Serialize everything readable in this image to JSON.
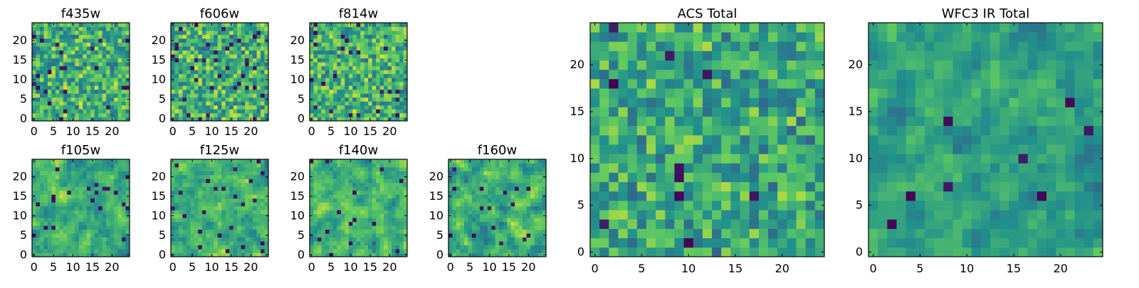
{
  "chart_data": [
    {
      "type": "heatmap",
      "id": "f435w",
      "title": "f435w",
      "grid": [
        25,
        25
      ],
      "xlim": [
        0,
        24
      ],
      "ylim": [
        0,
        24
      ],
      "xticks": [
        0,
        5,
        10,
        15,
        20
      ],
      "yticks": [
        0,
        5,
        10,
        15,
        20
      ],
      "seed": 11,
      "smooth": 0,
      "noise": 0.52,
      "dark": 0.035
    },
    {
      "type": "heatmap",
      "id": "f606w",
      "title": "f606w",
      "grid": [
        25,
        25
      ],
      "xlim": [
        0,
        24
      ],
      "ylim": [
        0,
        24
      ],
      "xticks": [
        0,
        5,
        10,
        15,
        20
      ],
      "yticks": [
        0,
        5,
        10,
        15,
        20
      ],
      "seed": 23,
      "smooth": 0,
      "noise": 0.52,
      "dark": 0.04
    },
    {
      "type": "heatmap",
      "id": "f814w",
      "title": "f814w",
      "grid": [
        25,
        25
      ],
      "xlim": [
        0,
        24
      ],
      "ylim": [
        0,
        24
      ],
      "xticks": [
        0,
        5,
        10,
        15,
        20
      ],
      "yticks": [
        0,
        5,
        10,
        15,
        20
      ],
      "seed": 37,
      "smooth": 0,
      "noise": 0.52,
      "dark": 0.04
    },
    {
      "type": "heatmap",
      "id": "f105w",
      "title": "f105w",
      "grid": [
        25,
        25
      ],
      "xlim": [
        0,
        24
      ],
      "ylim": [
        0,
        24
      ],
      "xticks": [
        0,
        5,
        10,
        15,
        20
      ],
      "yticks": [
        0,
        5,
        10,
        15,
        20
      ],
      "seed": 41,
      "smooth": 1,
      "noise": 0.5,
      "dark": 0.02
    },
    {
      "type": "heatmap",
      "id": "f125w",
      "title": "f125w",
      "grid": [
        25,
        25
      ],
      "xlim": [
        0,
        24
      ],
      "ylim": [
        0,
        24
      ],
      "xticks": [
        0,
        5,
        10,
        15,
        20
      ],
      "yticks": [
        0,
        5,
        10,
        15,
        20
      ],
      "seed": 53,
      "smooth": 1,
      "noise": 0.5,
      "dark": 0.025
    },
    {
      "type": "heatmap",
      "id": "f140w",
      "title": "f140w",
      "grid": [
        25,
        25
      ],
      "xlim": [
        0,
        24
      ],
      "ylim": [
        0,
        24
      ],
      "xticks": [
        0,
        5,
        10,
        15,
        20
      ],
      "yticks": [
        0,
        5,
        10,
        15,
        20
      ],
      "seed": 67,
      "smooth": 1,
      "noise": 0.5,
      "dark": 0.02
    },
    {
      "type": "heatmap",
      "id": "f160w",
      "title": "f160w",
      "grid": [
        25,
        25
      ],
      "xlim": [
        0,
        24
      ],
      "ylim": [
        0,
        24
      ],
      "xticks": [
        0,
        5,
        10,
        15,
        20
      ],
      "yticks": [
        0,
        5,
        10,
        15,
        20
      ],
      "seed": 79,
      "smooth": 1,
      "noise": 0.5,
      "dark": 0.02
    },
    {
      "type": "heatmap",
      "id": "acs_total",
      "title": "ACS Total",
      "grid": [
        25,
        25
      ],
      "xlim": [
        0,
        24
      ],
      "ylim": [
        0,
        24
      ],
      "xticks": [
        0,
        5,
        10,
        15,
        20
      ],
      "yticks": [
        0,
        5,
        10,
        15,
        20
      ],
      "seed": 97,
      "smooth": 0,
      "noise": 0.45,
      "dark": 0.025
    },
    {
      "type": "heatmap",
      "id": "wfc3_ir_total",
      "title": "WFC3 IR Total",
      "grid": [
        25,
        25
      ],
      "xlim": [
        0,
        24
      ],
      "ylim": [
        0,
        24
      ],
      "xticks": [
        0,
        5,
        10,
        15,
        20
      ],
      "yticks": [
        0,
        5,
        10,
        15,
        20
      ],
      "seed": 113,
      "smooth": 1,
      "noise": 0.35,
      "dark": 0.015
    }
  ],
  "colormap": [
    "#440154",
    "#3b528b",
    "#21918c",
    "#5ec962",
    "#fde725"
  ]
}
